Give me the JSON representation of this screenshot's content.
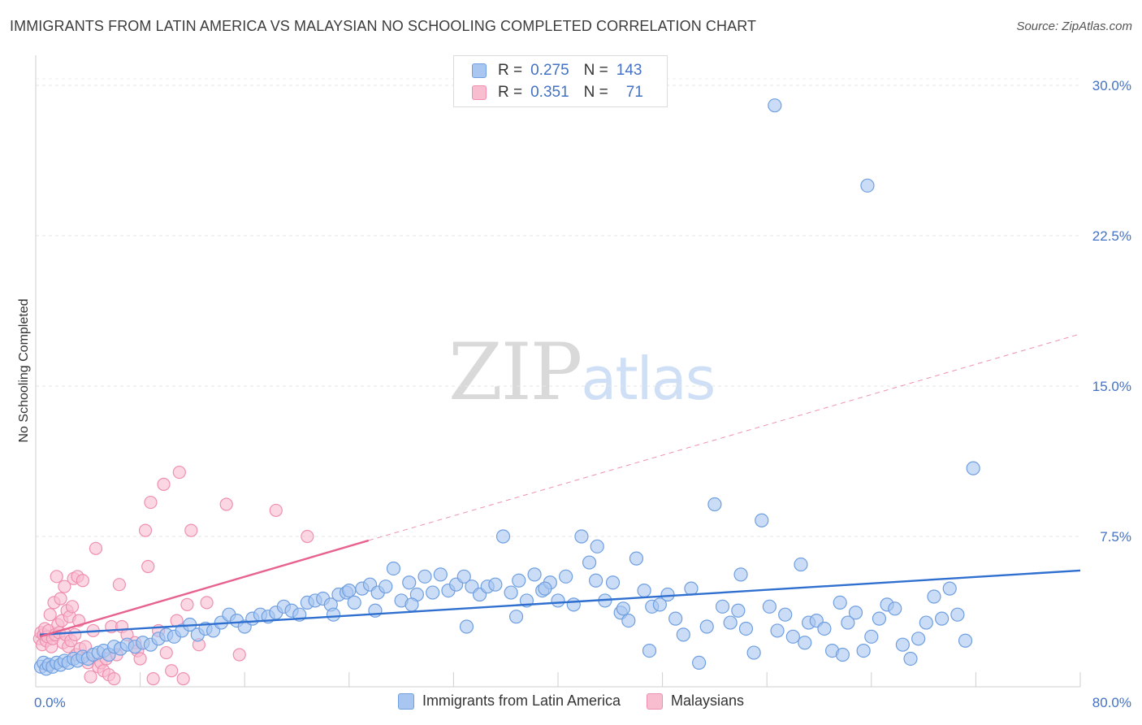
{
  "title": "IMMIGRANTS FROM LATIN AMERICA VS MALAYSIAN NO SCHOOLING COMPLETED CORRELATION CHART",
  "source": "Source: ZipAtlas.com",
  "watermark": {
    "zip": "ZIP",
    "atlas": "atlas"
  },
  "legend": [
    {
      "r_label": "R =",
      "r_value": "0.275",
      "n_label": "N =",
      "n_value": "143",
      "color": "#a9c6f0",
      "border": "#6f9fe0"
    },
    {
      "r_label": "R =",
      "r_value": "0.351",
      "n_label": "N =",
      "n_value": "71",
      "color": "#f9bdd0",
      "border": "#ef8fb0"
    }
  ],
  "bottom_legend": [
    {
      "label": "Immigrants from Latin America",
      "color": "#a9c6f0",
      "border": "#6f9fe0"
    },
    {
      "label": "Malaysians",
      "color": "#f9bdd0",
      "border": "#ef8fb0"
    }
  ],
  "chart_data": {
    "type": "scatter",
    "title": "IMMIGRANTS FROM LATIN AMERICA VS MALAYSIAN NO SCHOOLING COMPLETED CORRELATION CHART",
    "xlabel": "",
    "ylabel": "No Schooling Completed",
    "xlim": [
      0,
      80
    ],
    "ylim": [
      0,
      31.5
    ],
    "x_ticks": [
      {
        "v": 0,
        "label": "0.0%"
      },
      {
        "v": 80,
        "label": "80.0%"
      }
    ],
    "y_ticks": [
      {
        "v": 7.5,
        "label": "7.5%"
      },
      {
        "v": 15,
        "label": "15.0%"
      },
      {
        "v": 22.5,
        "label": "22.5%"
      },
      {
        "v": 30,
        "label": "30.0%"
      }
    ],
    "grid": true,
    "series": [
      {
        "name": "Immigrants from Latin America",
        "color": "#6f9fe0",
        "fill": "#a9c6f0",
        "trend": {
          "x0": 0.3,
          "y0": 2.6,
          "x1": 80,
          "y1": 5.8,
          "color": "#2f6fcf"
        },
        "points": [
          [
            0.4,
            1.0
          ],
          [
            0.6,
            1.2
          ],
          [
            0.8,
            0.9
          ],
          [
            1.0,
            1.1
          ],
          [
            1.3,
            1.0
          ],
          [
            1.6,
            1.2
          ],
          [
            1.9,
            1.1
          ],
          [
            2.2,
            1.3
          ],
          [
            2.5,
            1.2
          ],
          [
            2.9,
            1.4
          ],
          [
            3.2,
            1.3
          ],
          [
            3.6,
            1.5
          ],
          [
            4.0,
            1.4
          ],
          [
            4.4,
            1.6
          ],
          [
            4.8,
            1.7
          ],
          [
            5.2,
            1.8
          ],
          [
            5.6,
            1.6
          ],
          [
            6.0,
            2.0
          ],
          [
            6.5,
            1.9
          ],
          [
            7.0,
            2.1
          ],
          [
            7.6,
            2.0
          ],
          [
            8.2,
            2.2
          ],
          [
            8.8,
            2.1
          ],
          [
            9.4,
            2.4
          ],
          [
            10.0,
            2.6
          ],
          [
            10.6,
            2.5
          ],
          [
            11.2,
            2.8
          ],
          [
            11.8,
            3.1
          ],
          [
            12.4,
            2.6
          ],
          [
            13.0,
            2.9
          ],
          [
            13.6,
            2.8
          ],
          [
            14.2,
            3.2
          ],
          [
            14.8,
            3.6
          ],
          [
            15.4,
            3.3
          ],
          [
            16.0,
            3.0
          ],
          [
            16.6,
            3.4
          ],
          [
            17.2,
            3.6
          ],
          [
            17.8,
            3.5
          ],
          [
            18.4,
            3.7
          ],
          [
            19.0,
            4.0
          ],
          [
            19.6,
            3.8
          ],
          [
            20.2,
            3.6
          ],
          [
            20.8,
            4.2
          ],
          [
            21.4,
            4.3
          ],
          [
            22.0,
            4.4
          ],
          [
            22.6,
            4.1
          ],
          [
            23.2,
            4.6
          ],
          [
            23.8,
            4.7
          ],
          [
            24.4,
            4.2
          ],
          [
            25.0,
            4.9
          ],
          [
            25.6,
            5.1
          ],
          [
            26.2,
            4.7
          ],
          [
            26.8,
            5.0
          ],
          [
            27.4,
            5.9
          ],
          [
            28.0,
            4.3
          ],
          [
            28.6,
            5.2
          ],
          [
            29.2,
            4.6
          ],
          [
            29.8,
            5.5
          ],
          [
            30.4,
            4.7
          ],
          [
            31.0,
            5.6
          ],
          [
            31.6,
            4.8
          ],
          [
            32.2,
            5.1
          ],
          [
            32.8,
            5.5
          ],
          [
            33.4,
            5.0
          ],
          [
            34.0,
            4.6
          ],
          [
            34.6,
            5.0
          ],
          [
            35.2,
            5.1
          ],
          [
            35.8,
            7.5
          ],
          [
            36.4,
            4.7
          ],
          [
            37.0,
            5.3
          ],
          [
            37.6,
            4.3
          ],
          [
            38.2,
            5.6
          ],
          [
            38.8,
            4.8
          ],
          [
            39.4,
            5.2
          ],
          [
            40.0,
            4.3
          ],
          [
            40.6,
            5.5
          ],
          [
            41.2,
            4.1
          ],
          [
            41.8,
            7.5
          ],
          [
            42.4,
            6.2
          ],
          [
            43.0,
            7.0
          ],
          [
            43.6,
            4.3
          ],
          [
            44.2,
            5.2
          ],
          [
            44.8,
            3.7
          ],
          [
            45.4,
            3.3
          ],
          [
            46.0,
            6.4
          ],
          [
            46.6,
            4.8
          ],
          [
            47.2,
            4.0
          ],
          [
            47.8,
            4.1
          ],
          [
            48.4,
            4.6
          ],
          [
            49.0,
            3.4
          ],
          [
            49.6,
            2.6
          ],
          [
            50.2,
            4.9
          ],
          [
            50.8,
            1.2
          ],
          [
            51.4,
            3.0
          ],
          [
            52.0,
            9.1
          ],
          [
            52.6,
            4.0
          ],
          [
            53.2,
            3.2
          ],
          [
            53.8,
            3.8
          ],
          [
            54.4,
            2.9
          ],
          [
            55.0,
            1.7
          ],
          [
            55.6,
            8.3
          ],
          [
            56.2,
            4.0
          ],
          [
            56.8,
            2.8
          ],
          [
            57.4,
            3.6
          ],
          [
            58.0,
            2.5
          ],
          [
            58.6,
            6.1
          ],
          [
            59.2,
            3.2
          ],
          [
            59.8,
            3.3
          ],
          [
            60.4,
            2.9
          ],
          [
            61.0,
            1.8
          ],
          [
            61.6,
            4.2
          ],
          [
            62.2,
            3.2
          ],
          [
            62.8,
            3.7
          ],
          [
            63.4,
            1.8
          ],
          [
            64.0,
            2.5
          ],
          [
            64.6,
            3.4
          ],
          [
            65.2,
            4.1
          ],
          [
            65.8,
            3.9
          ],
          [
            66.4,
            2.1
          ],
          [
            67.0,
            1.4
          ],
          [
            67.6,
            2.4
          ],
          [
            68.2,
            3.2
          ],
          [
            68.8,
            4.5
          ],
          [
            69.4,
            3.4
          ],
          [
            70.0,
            4.9
          ],
          [
            70.6,
            3.6
          ],
          [
            71.2,
            2.3
          ],
          [
            71.8,
            10.9
          ],
          [
            56.6,
            29.0
          ],
          [
            63.7,
            25.0
          ],
          [
            22.8,
            3.6
          ],
          [
            24.0,
            4.8
          ],
          [
            26.0,
            3.8
          ],
          [
            28.8,
            4.1
          ],
          [
            33.0,
            3.0
          ],
          [
            36.8,
            3.5
          ],
          [
            39.0,
            4.9
          ],
          [
            42.9,
            5.3
          ],
          [
            45.0,
            3.9
          ],
          [
            47.0,
            1.8
          ],
          [
            54.0,
            5.6
          ],
          [
            58.9,
            2.2
          ],
          [
            61.8,
            1.6
          ]
        ]
      },
      {
        "name": "Malaysians",
        "color": "#ef8fb0",
        "fill": "#f9bdd0",
        "trend": {
          "x0": 0.3,
          "y0": 2.5,
          "x1": 25.5,
          "y1": 7.3,
          "color": "#e8628e",
          "dash_to": {
            "x": 80,
            "y": 17.6
          }
        },
        "points": [
          [
            0.3,
            2.4
          ],
          [
            0.4,
            2.7
          ],
          [
            0.5,
            2.1
          ],
          [
            0.6,
            2.6
          ],
          [
            0.7,
            2.9
          ],
          [
            0.8,
            2.3
          ],
          [
            0.9,
            2.5
          ],
          [
            1.0,
            2.8
          ],
          [
            1.1,
            3.6
          ],
          [
            1.2,
            2.0
          ],
          [
            1.3,
            2.4
          ],
          [
            1.4,
            4.2
          ],
          [
            1.5,
            2.6
          ],
          [
            1.6,
            5.5
          ],
          [
            1.7,
            3.1
          ],
          [
            1.8,
            2.7
          ],
          [
            1.9,
            4.4
          ],
          [
            2.0,
            3.3
          ],
          [
            2.1,
            2.2
          ],
          [
            2.2,
            5.0
          ],
          [
            2.3,
            2.6
          ],
          [
            2.4,
            3.8
          ],
          [
            2.5,
            2.0
          ],
          [
            2.6,
            3.5
          ],
          [
            2.7,
            2.3
          ],
          [
            2.8,
            4.0
          ],
          [
            2.9,
            5.4
          ],
          [
            3.0,
            2.6
          ],
          [
            3.1,
            1.6
          ],
          [
            3.2,
            5.5
          ],
          [
            3.3,
            3.3
          ],
          [
            3.4,
            1.9
          ],
          [
            3.6,
            5.3
          ],
          [
            3.8,
            2.0
          ],
          [
            4.0,
            1.2
          ],
          [
            4.2,
            0.5
          ],
          [
            4.4,
            2.8
          ],
          [
            4.6,
            6.9
          ],
          [
            4.8,
            1.0
          ],
          [
            5.0,
            1.2
          ],
          [
            5.2,
            0.8
          ],
          [
            5.4,
            1.4
          ],
          [
            5.6,
            0.6
          ],
          [
            5.8,
            3.0
          ],
          [
            6.0,
            0.4
          ],
          [
            6.2,
            1.6
          ],
          [
            6.4,
            5.1
          ],
          [
            6.6,
            3.0
          ],
          [
            7.0,
            2.6
          ],
          [
            7.6,
            2.2
          ],
          [
            7.8,
            1.8
          ],
          [
            8.0,
            1.4
          ],
          [
            8.4,
            7.8
          ],
          [
            8.6,
            6.0
          ],
          [
            8.8,
            9.2
          ],
          [
            9.0,
            0.4
          ],
          [
            9.4,
            2.8
          ],
          [
            9.8,
            10.1
          ],
          [
            10.0,
            1.7
          ],
          [
            10.4,
            0.8
          ],
          [
            10.8,
            3.3
          ],
          [
            11.0,
            10.7
          ],
          [
            11.3,
            0.4
          ],
          [
            11.6,
            4.1
          ],
          [
            11.9,
            7.8
          ],
          [
            12.5,
            2.1
          ],
          [
            13.1,
            4.2
          ],
          [
            14.6,
            9.1
          ],
          [
            15.6,
            1.6
          ],
          [
            18.4,
            8.8
          ],
          [
            20.8,
            7.5
          ]
        ]
      }
    ]
  }
}
